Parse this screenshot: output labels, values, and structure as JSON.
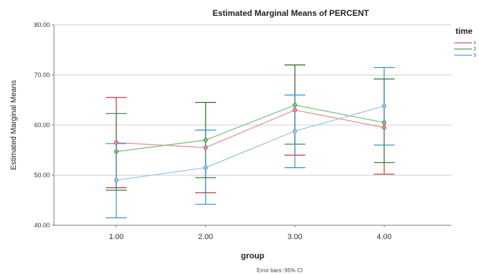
{
  "chart_data": {
    "type": "line",
    "title": "Estimated Marginal Means of PERCENT",
    "xlabel": "group",
    "ylabel": "Estimated Marginal Means",
    "categories": [
      "1.00",
      "2.00",
      "3.00",
      "4.00"
    ],
    "yticks": [
      "40.00",
      "50.00",
      "60.00",
      "70.00",
      "80.00"
    ],
    "ylim": [
      40,
      80
    ],
    "grid": "horizontal",
    "legend": {
      "title": "time",
      "placement": "right",
      "entries": [
        "1",
        "2",
        "3"
      ]
    },
    "note": "Error bars: 95% CI",
    "series": [
      {
        "name": "1",
        "color": "#e0909a",
        "err_color": "#c2303c",
        "values": [
          56.5,
          55.5,
          63.0,
          59.5
        ],
        "ci_low": [
          47.5,
          46.5,
          54.0,
          50.2
        ],
        "ci_high": [
          65.5,
          64.5,
          72.0,
          69.2
        ]
      },
      {
        "name": "2",
        "color": "#7fc07f",
        "err_color": "#2e7d32",
        "values": [
          54.7,
          57.0,
          64.0,
          60.5
        ],
        "ci_low": [
          47.0,
          49.5,
          56.2,
          52.5
        ],
        "ci_high": [
          62.3,
          64.5,
          72.0,
          69.2
        ]
      },
      {
        "name": "3",
        "color": "#9ec5e0",
        "err_color": "#2f8fc0",
        "values": [
          49.0,
          51.5,
          58.8,
          63.8
        ],
        "ci_low": [
          41.5,
          44.2,
          51.5,
          56.0
        ],
        "ci_high": [
          56.3,
          59.0,
          66.0,
          71.5
        ]
      }
    ]
  }
}
